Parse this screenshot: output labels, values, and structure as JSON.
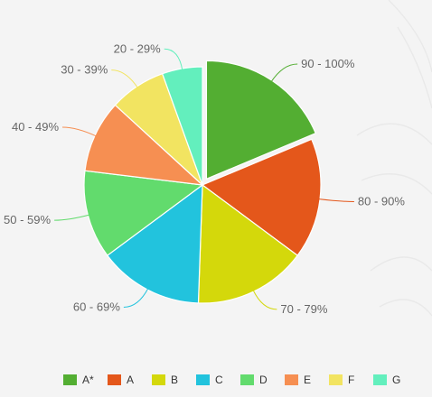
{
  "chart_data": {
    "type": "pie",
    "categories": [
      "90 - 100%",
      "80 - 90%",
      "70 - 79%",
      "60 - 69%",
      "50 - 59%",
      "40 - 49%",
      "30 - 39%",
      "20 - 29%"
    ],
    "grades": [
      "A*",
      "A",
      "B",
      "C",
      "D",
      "E",
      "F",
      "G"
    ],
    "values": [
      17,
      15,
      14,
      13,
      11,
      9,
      7,
      5
    ],
    "colors": [
      "#53ae32",
      "#e4571b",
      "#d4d80b",
      "#22c3dd",
      "#62db6d",
      "#f68f52",
      "#f2e461",
      "#63efbd"
    ],
    "exploded": "90 - 100%",
    "legend_position": "bottom"
  }
}
